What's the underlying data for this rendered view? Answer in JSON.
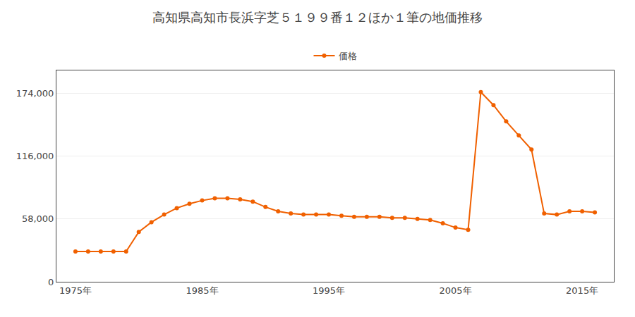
{
  "chart_data": {
    "type": "line",
    "title": "高知県高知市長浜字芝５１９９番１２ほか１筆の地価推移",
    "x": [
      1975,
      1976,
      1977,
      1978,
      1979,
      1980,
      1981,
      1982,
      1983,
      1984,
      1985,
      1986,
      1987,
      1988,
      1989,
      1990,
      1991,
      1992,
      1993,
      1994,
      1995,
      1996,
      1997,
      1998,
      1999,
      2000,
      2001,
      2002,
      2003,
      2004,
      2005,
      2006,
      2007,
      2008,
      2009,
      2010,
      2011,
      2012,
      2013,
      2014,
      2015,
      2016
    ],
    "series": [
      {
        "name": "価格",
        "color": "#f06000",
        "marker": "circle",
        "values": [
          28000,
          28000,
          28000,
          28000,
          28000,
          46000,
          55000,
          62000,
          68000,
          72000,
          75000,
          77000,
          77000,
          76000,
          74000,
          69000,
          65000,
          63000,
          62000,
          62000,
          62000,
          61000,
          60000,
          60000,
          60000,
          59000,
          59000,
          58000,
          57000,
          54000,
          50000,
          48000,
          175000,
          163000,
          148000,
          135000,
          122000,
          63000,
          62000,
          65000,
          65000,
          64000
        ]
      }
    ],
    "xlim": [
      1973.5,
      2017.5
    ],
    "xticks": [
      {
        "value": 1975,
        "label": "1975年"
      },
      {
        "value": 1985,
        "label": "1985年"
      },
      {
        "value": 1995,
        "label": "1995年"
      },
      {
        "value": 2005,
        "label": "2005年"
      },
      {
        "value": 2015,
        "label": "2015年"
      }
    ],
    "ylim": [
      0,
      195000
    ],
    "yticks": [
      0,
      {
        "value": 58000,
        "label": "58,000"
      },
      {
        "value": 116000,
        "label": "116,000"
      },
      {
        "value": 174000,
        "label": "174,000"
      }
    ],
    "grid": "y",
    "legend": "top"
  }
}
